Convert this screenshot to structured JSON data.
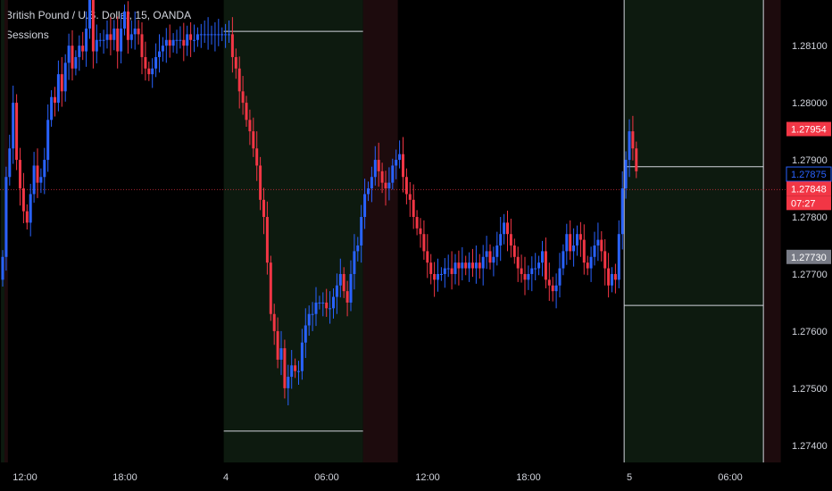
{
  "header": {
    "symbol_line": "British Pound / U.S. Dollar, 15, OANDA",
    "indicator": "Sessions"
  },
  "colors": {
    "background": "#000000",
    "up_candle": "#2962ff",
    "down_candle": "#f23645",
    "session_london": "#0d1a0f",
    "session_asia_tint": "#1d0b0d",
    "current_price": "#f23645",
    "ohlc_label": "#787b86",
    "high_label": "#f23645",
    "line_label": "#2962ff"
  },
  "chart_data": {
    "type": "candlestick",
    "y_axis": {
      "range": [
        1.2737,
        1.2818
      ],
      "ticks": [
        "1.28100",
        "1.28000",
        "1.27900",
        "1.27800",
        "1.27700",
        "1.27600",
        "1.27500",
        "1.27400"
      ],
      "tick_values": [
        1.281,
        1.28,
        1.279,
        1.278,
        1.277,
        1.276,
        1.275,
        1.274
      ]
    },
    "x_axis": {
      "ticks": [
        "12:00",
        "18:00",
        "4",
        "06:00",
        "12:00",
        "18:00",
        "5",
        "06:00"
      ]
    },
    "price_labels": [
      {
        "text": "1.27954",
        "value": 1.27954,
        "role": "session-high"
      },
      {
        "text": "1.27875",
        "value": 1.27875,
        "role": "line"
      },
      {
        "text": "1.27848",
        "value": 1.27848,
        "role": "current-price"
      },
      {
        "text": "07:27",
        "value": 1.27848,
        "role": "countdown"
      },
      {
        "text": "1.27730",
        "value": 1.2773,
        "role": "session-low"
      }
    ],
    "current_price": 1.27848,
    "sessions": [
      {
        "kind": "london",
        "start_bar": 0,
        "end_bar": 1
      },
      {
        "kind": "asia",
        "start_bar": 1,
        "end_bar": 2
      },
      {
        "kind": "london",
        "start_bar": 64,
        "end_bar": 104,
        "high": 1.28125,
        "low": 1.27425
      },
      {
        "kind": "asia",
        "start_bar": 104,
        "end_bar": 114
      },
      {
        "kind": "london",
        "start_bar": 179,
        "end_bar": 219,
        "high": 1.27888,
        "low": 1.27645
      },
      {
        "kind": "asia",
        "start_bar": 219,
        "end_bar": 224
      }
    ],
    "closes": [
      1.2773,
      1.2787,
      1.2792,
      1.28,
      1.279,
      1.2785,
      1.2781,
      1.2779,
      1.2784,
      1.2789,
      1.2786,
      1.2787,
      1.279,
      1.2797,
      1.2801,
      1.28,
      1.2805,
      1.2802,
      1.2807,
      1.281,
      1.2806,
      1.2808,
      1.281,
      1.2809,
      1.2813,
      1.282,
      1.2809,
      1.2811,
      1.2811,
      1.2811,
      1.2812,
      1.2811,
      1.2813,
      1.2809,
      1.2813,
      1.2816,
      1.2811,
      1.2812,
      1.2813,
      1.2812,
      1.2808,
      1.2806,
      1.2805,
      1.2806,
      1.2808,
      1.2809,
      1.281,
      1.2811,
      1.281,
      1.2811,
      1.2811,
      1.2811,
      1.281,
      1.2812,
      1.2811,
      1.2811,
      1.2812,
      1.2812,
      1.2812,
      1.2812,
      1.2812,
      1.2812,
      1.2812,
      1.2812,
      1.2812,
      1.2812,
      1.2808,
      1.2806,
      1.2802,
      1.28,
      1.2797,
      1.2795,
      1.2792,
      1.2789,
      1.2783,
      1.278,
      1.2772,
      1.2763,
      1.276,
      1.2755,
      1.2757,
      1.275,
      1.2752,
      1.2754,
      1.2753,
      1.2753,
      1.2758,
      1.2761,
      1.2763,
      1.2763,
      1.2765,
      1.2765,
      1.2765,
      1.2764,
      1.2764,
      1.2766,
      1.2768,
      1.277,
      1.2767,
      1.2765,
      1.277,
      1.2774,
      1.2775,
      1.278,
      1.2784,
      1.2785,
      1.2787,
      1.279,
      1.2788,
      1.2786,
      1.2785,
      1.2786,
      1.2789,
      1.279,
      1.2791,
      1.2787,
      1.2784,
      1.2783,
      1.278,
      1.2778,
      1.2777,
      1.2774,
      1.2772,
      1.277,
      1.2769,
      1.277,
      1.277,
      1.2771,
      1.2771,
      1.277,
      1.2772,
      1.2771,
      1.2772,
      1.2771,
      1.2772,
      1.2771,
      1.2772,
      1.2771,
      1.2773,
      1.2774,
      1.2772,
      1.2773,
      1.2775,
      1.2777,
      1.2779,
      1.2777,
      1.2775,
      1.2773,
      1.2771,
      1.277,
      1.2769,
      1.277,
      1.2771,
      1.2771,
      1.2772,
      1.2774,
      1.2769,
      1.2768,
      1.2767,
      1.2768,
      1.2771,
      1.2774,
      1.2777,
      1.2774,
      1.2775,
      1.2777,
      1.2776,
      1.2772,
      1.2771,
      1.2773,
      1.2775,
      1.2776,
      1.2774,
      1.2771,
      1.2768,
      1.277,
      1.2769,
      1.2777,
      1.2785,
      1.279,
      1.2795,
      1.2792,
      1.2788
    ]
  }
}
